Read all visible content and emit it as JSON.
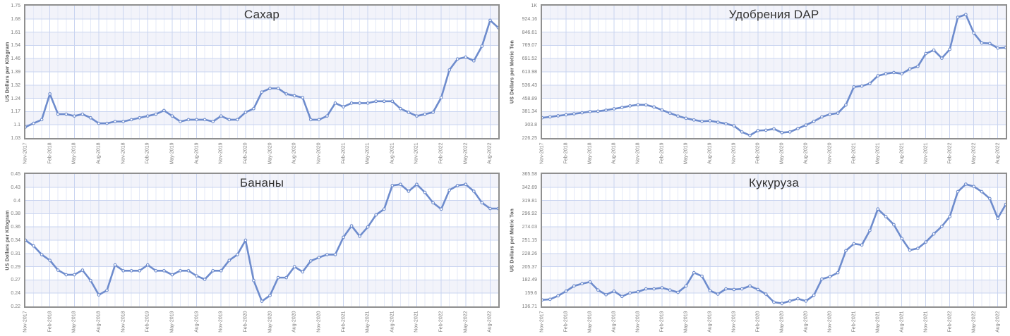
{
  "page": {
    "background": "#ffffff",
    "x_tick_labels": [
      "Nov-2017",
      "Feb-2018",
      "May-2018",
      "Aug-2018",
      "Nov-2018",
      "Feb-2019",
      "May-2019",
      "Aug-2019",
      "Nov-2019",
      "Feb-2020",
      "May-2020",
      "Aug-2020",
      "Nov-2020",
      "Feb-2021",
      "May-2021",
      "Aug-2021",
      "Nov-2021",
      "Feb-2022",
      "May-2022",
      "Aug-2022"
    ],
    "x_frequency": "monthly",
    "x_tick_interval": 3
  },
  "palette": {
    "line": "#6e8ccd",
    "marker_fill": "#ffffff",
    "stripe": "#f2f3fa",
    "grid_minor": "#e4e9f7",
    "grid_major": "#c9d4f0",
    "plot_border": "#8f8f8f",
    "tick_label": "#7d7d7d",
    "axis_title": "#555555",
    "title": "#333333"
  },
  "chart_data": [
    {
      "id": "sugar",
      "type": "line",
      "title": "Сахар",
      "ylabel": "US Dollars per Kilogram",
      "y_min": 1.03,
      "y_max": 1.75,
      "y_tick_labels": [
        "1.03",
        "1.1",
        "1.17",
        "1.24",
        "1.32",
        "1.39",
        "1.46",
        "1.54",
        "1.61",
        "1.68",
        "1.75"
      ],
      "x_start": "Nov-2017",
      "values": [
        1.09,
        1.11,
        1.13,
        1.27,
        1.16,
        1.16,
        1.15,
        1.16,
        1.14,
        1.11,
        1.11,
        1.12,
        1.12,
        1.13,
        1.14,
        1.15,
        1.16,
        1.18,
        1.15,
        1.12,
        1.13,
        1.13,
        1.13,
        1.12,
        1.15,
        1.13,
        1.13,
        1.17,
        1.19,
        1.28,
        1.3,
        1.3,
        1.27,
        1.26,
        1.25,
        1.13,
        1.13,
        1.15,
        1.22,
        1.2,
        1.22,
        1.22,
        1.22,
        1.23,
        1.23,
        1.23,
        1.19,
        1.17,
        1.15,
        1.16,
        1.17,
        1.25,
        1.4,
        1.46,
        1.47,
        1.45,
        1.53,
        1.67,
        1.63
      ]
    },
    {
      "id": "dap",
      "type": "line",
      "title": "Удобрения DAP",
      "ylabel": "US Dollars per Metric Ton",
      "y_min": 226.25,
      "y_max": 1000,
      "y_tick_labels": [
        "226.25",
        "303.8",
        "381.34",
        "458.89",
        "536.43",
        "613.98",
        "691.52",
        "769.07",
        "846.61",
        "924.16",
        "1K"
      ],
      "x_start": "Nov-2017",
      "values": [
        345,
        350,
        356,
        362,
        368,
        374,
        381,
        383,
        389,
        397,
        405,
        414,
        421,
        420,
        408,
        390,
        372,
        355,
        342,
        332,
        324,
        327,
        319,
        310,
        298,
        262,
        242,
        270,
        272,
        280,
        258,
        262,
        282,
        302,
        324,
        350,
        365,
        372,
        420,
        525,
        530,
        545,
        590,
        602,
        609,
        602,
        630,
        645,
        720,
        740,
        693,
        745,
        932,
        948,
        840,
        782,
        779,
        752,
        755
      ]
    },
    {
      "id": "bananas",
      "type": "line",
      "title": "Бананы",
      "ylabel": "US Dollars per Kilogram",
      "y_min": 0.22,
      "y_max": 0.45,
      "y_tick_labels": [
        "0.22",
        "0.24",
        "0.27",
        "0.29",
        "0.31",
        "0.34",
        "0.36",
        "0.38",
        "0.4",
        "0.43",
        "0.45"
      ],
      "x_start": "Nov-2017",
      "values": [
        0.335,
        0.325,
        0.31,
        0.3,
        0.283,
        0.275,
        0.275,
        0.283,
        0.265,
        0.24,
        0.248,
        0.292,
        0.282,
        0.282,
        0.282,
        0.292,
        0.282,
        0.282,
        0.275,
        0.282,
        0.282,
        0.273,
        0.267,
        0.282,
        0.282,
        0.3,
        0.31,
        0.335,
        0.265,
        0.229,
        0.239,
        0.27,
        0.27,
        0.289,
        0.28,
        0.299,
        0.305,
        0.31,
        0.31,
        0.34,
        0.36,
        0.342,
        0.358,
        0.379,
        0.389,
        0.43,
        0.432,
        0.42,
        0.432,
        0.418,
        0.4,
        0.389,
        0.422,
        0.43,
        0.432,
        0.42,
        0.4,
        0.39,
        0.39
      ]
    },
    {
      "id": "corn",
      "type": "line",
      "title": "Кукуруза",
      "ylabel": "US Dollars per Metric Ton",
      "y_min": 136.71,
      "y_max": 365.58,
      "y_tick_labels": [
        "136.71",
        "159.6",
        "182.49",
        "205.37",
        "228.26",
        "251.15",
        "274.03",
        "296.92",
        "319.81",
        "342.69",
        "365.58"
      ],
      "x_start": "Nov-2017",
      "values": [
        148,
        149,
        155,
        163,
        172,
        176,
        179,
        165,
        157,
        163,
        154,
        160,
        162,
        167,
        167,
        169,
        165,
        161,
        172,
        195,
        189,
        164,
        158,
        167,
        166,
        167,
        172,
        166,
        158,
        144,
        142,
        146,
        150,
        146,
        156,
        184,
        188,
        195,
        233,
        245,
        243,
        268,
        305,
        292,
        278,
        254,
        234,
        237,
        248,
        262,
        275,
        292,
        335,
        348,
        344,
        335,
        323,
        289,
        313
      ]
    }
  ]
}
